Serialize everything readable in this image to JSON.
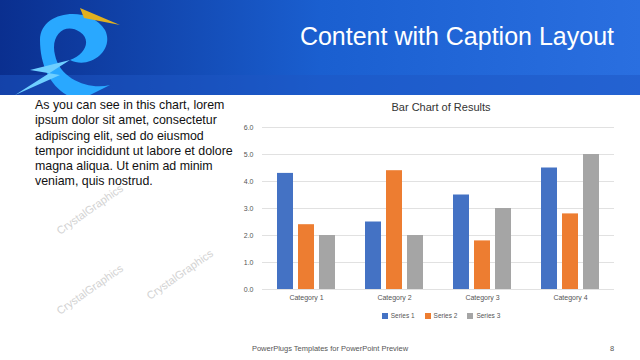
{
  "slide": {
    "title": "Content with Caption Layout",
    "caption": "As you can see in this chart, lorem ipsum dolor sit amet, consectetur adipiscing elit, sed do eiusmod tempor incididunt ut labore et dolore magna aliqua. Ut enim ad minim veniam, quis nostrud.",
    "footer": "PowerPlugs Templates for PowerPoint Preview",
    "page_number": 8,
    "watermark": "CrystalGraphics"
  },
  "chart_data": {
    "type": "bar",
    "title": "Bar Chart of Results",
    "categories": [
      "Category 1",
      "Category 2",
      "Category 3",
      "Category 4"
    ],
    "series": [
      {
        "name": "Series 1",
        "color": "#4472c4",
        "values": [
          4.3,
          2.5,
          3.5,
          4.5
        ]
      },
      {
        "name": "Series 2",
        "color": "#ed7d31",
        "values": [
          2.4,
          4.4,
          1.8,
          2.8
        ]
      },
      {
        "name": "Series 3",
        "color": "#a5a5a5",
        "values": [
          2,
          2,
          3,
          5
        ]
      }
    ],
    "ylim": [
      0,
      6
    ],
    "yticks": [
      0,
      1,
      2,
      3,
      4,
      5,
      6
    ],
    "grid": true,
    "legend": "bottom"
  }
}
